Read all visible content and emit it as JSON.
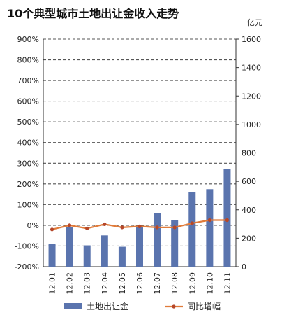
{
  "chart_data": {
    "type": "bar",
    "title": "10个典型城市土地出让金收入走势",
    "right_axis_unit": "亿元",
    "categories": [
      "12.01",
      "12.02",
      "12.03",
      "12.04",
      "12.05",
      "12.06",
      "12.07",
      "12.08",
      "12.09",
      "12.10",
      "12.11"
    ],
    "left_axis": {
      "ylim": [
        -200,
        900
      ],
      "ticks": [
        "-200%",
        "-100%",
        "0%",
        "100%",
        "200%",
        "300%",
        "400%",
        "500%",
        "600%",
        "700%",
        "800%",
        "900%"
      ]
    },
    "right_axis": {
      "ylim": [
        0,
        1600
      ],
      "ticks": [
        "0",
        "200",
        "400",
        "600",
        "800",
        "1000",
        "1200",
        "1400",
        "1600"
      ]
    },
    "grid": true,
    "legend_position": "bottom",
    "series": [
      {
        "name": "土地出让金",
        "type": "bar",
        "axis": "right",
        "color": "#5a74ae",
        "values": [
          160,
          280,
          150,
          220,
          140,
          285,
          375,
          325,
          525,
          545,
          685
        ]
      },
      {
        "name": "同比增幅",
        "type": "line",
        "axis": "left",
        "color": "#e07b3a",
        "values": [
          -20,
          0,
          -15,
          5,
          -10,
          -5,
          -10,
          -10,
          10,
          25,
          25
        ]
      }
    ]
  }
}
